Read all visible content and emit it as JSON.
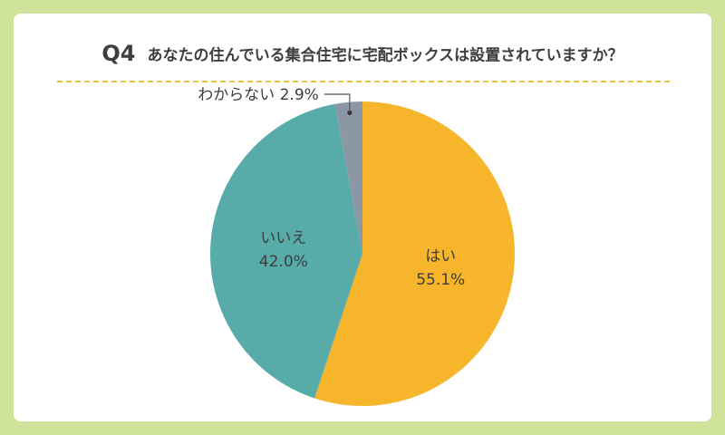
{
  "question": {
    "number": "Q4",
    "text": "あなたの住んでいる集合住宅に宅配ボックスは設置されていますか？"
  },
  "colors": {
    "background": "#cfe39b",
    "card": "#ffffff",
    "divider": "#e9bf3c",
    "text": "#3e3e3e"
  },
  "chart_data": {
    "type": "pie",
    "unit": "%",
    "slices": [
      {
        "label": "はい",
        "value": 55.1,
        "display": "55.1%",
        "color": "#f7b52b"
      },
      {
        "label": "いいえ",
        "value": 42.0,
        "display": "42.0%",
        "color": "#57aba8"
      },
      {
        "label": "わからない",
        "value": 2.9,
        "display": "2.9%",
        "color": "#8c97a6"
      }
    ]
  }
}
